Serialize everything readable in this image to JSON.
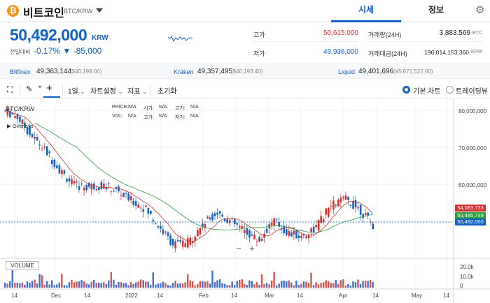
{
  "header": {
    "coin_symbol": "₿",
    "coin_name": "비트코인",
    "coin_pair": "BTC/KRW",
    "tab_market": "시세",
    "tab_info": "정보",
    "settings_icon": "gear-icon"
  },
  "summary": {
    "price": "50,492,000",
    "price_unit": "KRW",
    "change_label": "전일대비",
    "change_pct": "-0.17%",
    "change_abs": "▼ -85,000",
    "high_label": "고가",
    "high_value": "50,615,000",
    "low_label": "저가",
    "low_value": "49,936,000",
    "volume_label": "거래량(24H)",
    "volume_value": "3,883.569",
    "volume_unit": "BTC",
    "amount_label": "거래대금(24H)",
    "amount_value": "196,014,153,360",
    "amount_unit": "KRW",
    "colors": {
      "up": "#d32f2f",
      "down": "#1261c4"
    }
  },
  "exchanges": [
    {
      "name": "Bitfinex",
      "value": "49,363,144",
      "sub": "($40,198.00)"
    },
    {
      "name": "Kraken",
      "value": "49,357,495",
      "sub": "($40,193.40)"
    },
    {
      "name": "Liquid",
      "value": "49,401,696",
      "sub": "(¥5,071,522.00)"
    }
  ],
  "toolbar": {
    "interval": "1일",
    "chart_settings": "차트설정",
    "indicators": "지표",
    "reset": "초기화",
    "basic_chart": "기본 차트",
    "tradingview": "트레이딩뷰"
  },
  "chart": {
    "symbol": "BTC/KRW",
    "overlays": "Overlays",
    "legend": {
      "price_label": "PRICE:",
      "price_val": "N/A",
      "open_label": "시가:",
      "open_val": "N/A",
      "high_label": "고가:",
      "high_val": "N/A",
      "close_label": "종가:",
      "close_val": "N/A",
      "vol_label": "VOL:",
      "vol_val": "N/A",
      "high2_label": "고가:",
      "high2_val": "N/A",
      "low_label": "저가:",
      "low_val": "N/A"
    },
    "y_ticks": [
      "80,000,000",
      "70,000,000",
      "60,000,000"
    ],
    "vol_ticks": [
      "20.0k",
      "10.0k",
      "0"
    ],
    "x_ticks": [
      "14",
      "Dec",
      "14",
      "2022",
      "14",
      "Feb",
      "14",
      "Mar",
      "14",
      "Apr",
      "14",
      "May",
      "14"
    ],
    "tags": [
      {
        "text": "54,083,733",
        "color": "#d32f2f"
      },
      {
        "text": "50,485,739",
        "color": "#2e9e3c"
      },
      {
        "text": "50,492,000",
        "color": "#1261c4"
      }
    ],
    "volume_label": "VOLUME",
    "zoom_out": "−",
    "zoom_in": "+"
  },
  "chart_data": {
    "type": "line",
    "title": "",
    "xlabel": "",
    "ylabel": "",
    "x": [
      "2021-11-09",
      "2021-11-14",
      "2021-11-21",
      "2021-12-01",
      "2021-12-07",
      "2021-12-14",
      "2021-12-21",
      "2021-12-27",
      "2022-01-01",
      "2022-01-07",
      "2022-01-14",
      "2022-01-21",
      "2022-01-24",
      "2022-01-31",
      "2022-02-07",
      "2022-02-10",
      "2022-02-14",
      "2022-02-20",
      "2022-02-24",
      "2022-03-01",
      "2022-03-07",
      "2022-03-14",
      "2022-03-21",
      "2022-03-28",
      "2022-04-01",
      "2022-04-07",
      "2022-04-12"
    ],
    "series": [
      {
        "name": "",
        "values": [
          80500000,
          79000000,
          74000000,
          70000000,
          65000000,
          61000000,
          60500000,
          61000000,
          59500000,
          57000000,
          55000000,
          50000000,
          45500000,
          46000000,
          50500000,
          54000000,
          51500000,
          49000000,
          46500000,
          52000000,
          48500000,
          47500000,
          50000000,
          55500000,
          57500000,
          55000000,
          50500000
        ]
      }
    ],
    "ylim": [
      43000000,
      82000000
    ],
    "volume_ylim": [
      0,
      20000
    ]
  }
}
